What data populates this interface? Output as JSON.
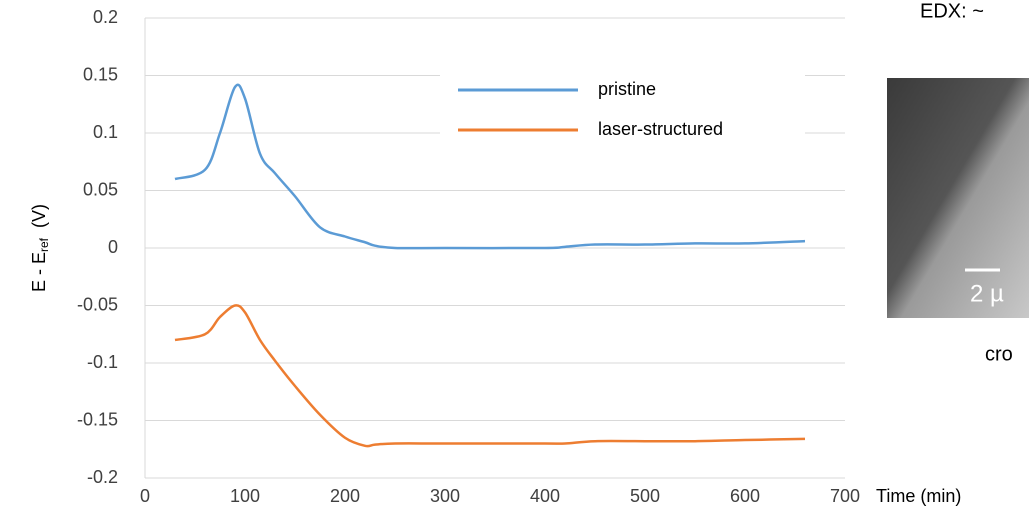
{
  "chart_data": {
    "type": "line",
    "ylabel": {
      "main": "E - E",
      "sub": "ref",
      "unit": "(V)"
    },
    "xlabel": "Time (min)",
    "xlim": [
      0,
      700
    ],
    "xticks": [
      0,
      100,
      200,
      300,
      400,
      500,
      600,
      700
    ],
    "ylim": [
      -0.2,
      0.2
    ],
    "yticks": [
      0.2,
      0.15,
      0.1,
      0.05,
      0,
      -0.05,
      -0.1,
      -0.15,
      -0.2
    ],
    "grid": true,
    "legend": "top-right",
    "x": [
      30,
      60,
      75,
      90,
      100,
      115,
      130,
      150,
      175,
      200,
      220,
      230,
      250,
      300,
      400,
      420,
      450,
      500,
      550,
      600,
      660
    ],
    "series": [
      {
        "name": "pristine",
        "color": "#5b9bd5",
        "values": [
          0.06,
          0.068,
          0.1,
          0.14,
          0.13,
          0.082,
          0.065,
          0.045,
          0.018,
          0.01,
          0.005,
          0.002,
          0,
          0,
          0,
          0.001,
          0.003,
          0.003,
          0.004,
          0.004,
          0.006
        ]
      },
      {
        "name": "laser-structured",
        "color": "#ed7d31",
        "values": [
          -0.08,
          -0.075,
          -0.06,
          -0.05,
          -0.056,
          -0.08,
          -0.098,
          -0.12,
          -0.145,
          -0.165,
          -0.172,
          -0.171,
          -0.17,
          -0.17,
          -0.17,
          -0.17,
          -0.168,
          -0.168,
          -0.168,
          -0.167,
          -0.166
        ]
      }
    ]
  },
  "annotations": {
    "edx": "EDX: ~",
    "scale": "2 µ",
    "caption": "cro"
  }
}
